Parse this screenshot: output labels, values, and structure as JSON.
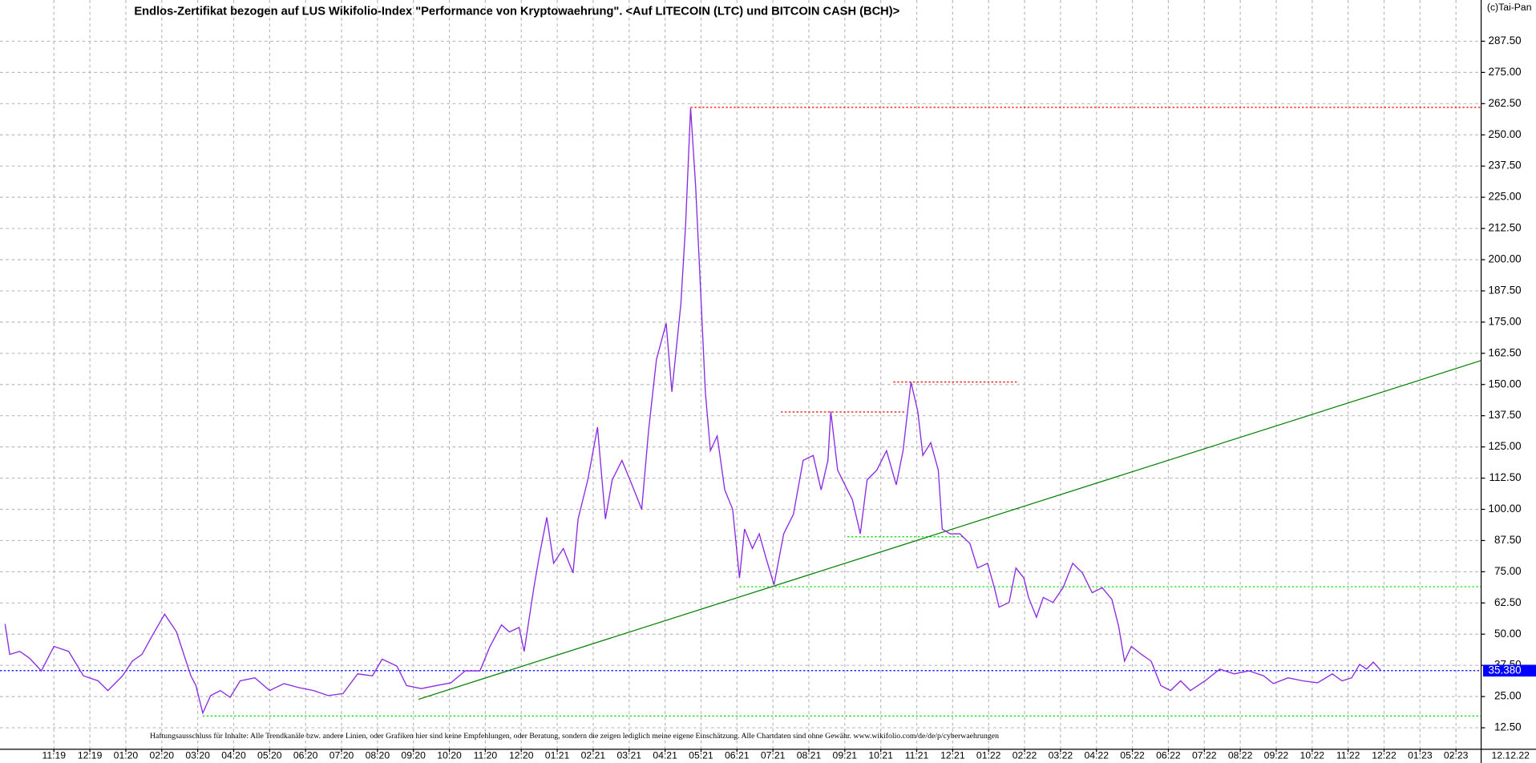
{
  "chart_data": {
    "type": "line",
    "title": "Endlos-Zertifikat bezogen auf LUS Wikifolio-Index \"Performance von Kryptowaehrung\". <Auf LITECOIN (LTC) und BITCOIN CASH (BCH)>",
    "copyright": "(c)Tai-Pan",
    "disclaimer": "Haftungsausschluss für Inhalte: Alle Trendkanäle bzw. andere Linien, oder Grafiken hier sind keine Empfehlungen, oder Beratung, sondern die zeigen lediglich meine eigene Einschätzung. Alle Chartdaten sind ohne Gewähr.  www.wikifolio.com/de/de/p/cyberwaehrungen",
    "date_marker": "-",
    "date_label": "12.12.22",
    "last": {
      "value": 35.38,
      "label": "35.380",
      "color": "#0000ff"
    },
    "grid": true,
    "xlim": [
      -1.5,
      39.7
    ],
    "ylim": [
      3.9,
      304
    ],
    "xticks": [
      {
        "value": 0,
        "label": "11:19"
      },
      {
        "value": 1,
        "label": "12:19"
      },
      {
        "value": 2,
        "label": "01:20"
      },
      {
        "value": 3,
        "label": "02:20"
      },
      {
        "value": 4,
        "label": "03:20"
      },
      {
        "value": 5,
        "label": "04:20"
      },
      {
        "value": 6,
        "label": "05:20"
      },
      {
        "value": 7,
        "label": "06:20"
      },
      {
        "value": 8,
        "label": "07:20"
      },
      {
        "value": 9,
        "label": "08:20"
      },
      {
        "value": 10,
        "label": "09:20"
      },
      {
        "value": 11,
        "label": "10:20"
      },
      {
        "value": 12,
        "label": "11:20"
      },
      {
        "value": 13,
        "label": "12:20"
      },
      {
        "value": 14,
        "label": "01:21"
      },
      {
        "value": 15,
        "label": "02:21"
      },
      {
        "value": 16,
        "label": "03:21"
      },
      {
        "value": 17,
        "label": "04:21"
      },
      {
        "value": 18,
        "label": "05:21"
      },
      {
        "value": 19,
        "label": "06:21"
      },
      {
        "value": 20,
        "label": "07:21"
      },
      {
        "value": 21,
        "label": "08:21"
      },
      {
        "value": 22,
        "label": "09:21"
      },
      {
        "value": 23,
        "label": "10:21"
      },
      {
        "value": 24,
        "label": "11:21"
      },
      {
        "value": 25,
        "label": "12:21"
      },
      {
        "value": 26,
        "label": "01:22"
      },
      {
        "value": 27,
        "label": "02:22"
      },
      {
        "value": 28,
        "label": "03:22"
      },
      {
        "value": 29,
        "label": "04:22"
      },
      {
        "value": 30,
        "label": "05:22"
      },
      {
        "value": 31,
        "label": "06:22"
      },
      {
        "value": 32,
        "label": "07:22"
      },
      {
        "value": 33,
        "label": "08:22"
      },
      {
        "value": 34,
        "label": "09:22"
      },
      {
        "value": 35,
        "label": "10:22"
      },
      {
        "value": 36,
        "label": "11:22"
      },
      {
        "value": 37,
        "label": "12:22"
      },
      {
        "value": 38,
        "label": "01:23"
      },
      {
        "value": 39,
        "label": "02:23"
      }
    ],
    "yticks": [
      {
        "value": 12.5,
        "label": "12.50"
      },
      {
        "value": 25,
        "label": "25.00"
      },
      {
        "value": 37.5,
        "label": "37.50"
      },
      {
        "value": 50,
        "label": "50.00"
      },
      {
        "value": 62.5,
        "label": "62.50"
      },
      {
        "value": 75,
        "label": "75.00"
      },
      {
        "value": 87.5,
        "label": "87.50"
      },
      {
        "value": 100,
        "label": "100.00"
      },
      {
        "value": 112.5,
        "label": "112.50"
      },
      {
        "value": 125,
        "label": "125.00"
      },
      {
        "value": 137.5,
        "label": "137.50"
      },
      {
        "value": 150,
        "label": "150.00"
      },
      {
        "value": 162.5,
        "label": "162.50"
      },
      {
        "value": 175,
        "label": "175.00"
      },
      {
        "value": 187.5,
        "label": "187.50"
      },
      {
        "value": 200,
        "label": "200.00"
      },
      {
        "value": 212.5,
        "label": "212.50"
      },
      {
        "value": 225,
        "label": "225.00"
      },
      {
        "value": 237.5,
        "label": "237.50"
      },
      {
        "value": 250,
        "label": "250.00"
      },
      {
        "value": 262.5,
        "label": "262.50"
      },
      {
        "value": 275,
        "label": "275.00"
      },
      {
        "value": 287.5,
        "label": "287.50"
      }
    ],
    "series": [
      {
        "color": "#8a2be2",
        "x": [
          -1.36,
          -1.23,
          -0.95,
          -0.68,
          -0.35,
          0,
          0.41,
          0.82,
          1.23,
          1.5,
          1.91,
          2.18,
          2.45,
          2.72,
          3.08,
          3.41,
          3.54,
          3.81,
          3.95,
          4.14,
          4.36,
          4.63,
          4.9,
          5.18,
          5.59,
          6,
          6.4,
          6.81,
          7.22,
          7.63,
          8.04,
          8.45,
          8.86,
          9.13,
          9.54,
          9.81,
          10.22,
          10.63,
          11.04,
          11.44,
          11.85,
          12.13,
          12.45,
          12.67,
          12.94,
          13.08,
          13.35,
          13.49,
          13.71,
          13.9,
          14.17,
          14.44,
          14.58,
          14.85,
          15.12,
          15.34,
          15.53,
          15.8,
          16.08,
          16.35,
          16.54,
          16.76,
          17.03,
          17.19,
          17.44,
          17.57,
          17.71,
          17.85,
          17.98,
          18.12,
          18.26,
          18.45,
          18.66,
          18.88,
          19.07,
          19.21,
          19.43,
          19.62,
          19.81,
          20.03,
          20.3,
          20.57,
          20.84,
          21.12,
          21.34,
          21.53,
          21.61,
          21.8,
          22.07,
          22.21,
          22.43,
          22.62,
          22.89,
          23.16,
          23.43,
          23.62,
          23.84,
          24.03,
          24.17,
          24.39,
          24.6,
          24.71,
          24.93,
          25.2,
          25.48,
          25.69,
          25.97,
          26.16,
          26.29,
          26.57,
          26.76,
          26.98,
          27.11,
          27.33,
          27.52,
          27.79,
          28.07,
          28.34,
          28.61,
          28.88,
          29.16,
          29.43,
          29.62,
          29.78,
          29.97,
          30.25,
          30.52,
          30.79,
          31.06,
          31.34,
          31.61,
          32.02,
          32.43,
          32.83,
          33.24,
          33.65,
          33.92,
          34.33,
          34.74,
          35.15,
          35.56,
          35.83,
          36.1,
          36.32,
          36.51,
          36.7,
          36.92
        ],
        "values": [
          54.1,
          41.9,
          43.1,
          40.4,
          35.3,
          45.1,
          43.1,
          33.3,
          31.3,
          27.4,
          33.3,
          39.2,
          41.9,
          49,
          58,
          50.9,
          45.1,
          33.3,
          29.4,
          18.4,
          25.4,
          27.4,
          24.7,
          31.3,
          32.5,
          27.4,
          30.2,
          28.6,
          27.4,
          25.4,
          26.2,
          34.1,
          33.3,
          40,
          37.2,
          29.4,
          28.2,
          29.4,
          30.5,
          35.3,
          35.3,
          45.1,
          53.7,
          50.9,
          52.7,
          43.1,
          68.6,
          80.4,
          96.8,
          78.4,
          84.3,
          74.5,
          96.1,
          111.8,
          132.9,
          96.1,
          111.8,
          119.6,
          109.8,
          100,
          131.4,
          160,
          174.5,
          147.1,
          182.4,
          213.7,
          260.8,
          229.4,
          190.2,
          147.1,
          123.5,
          129.4,
          107.8,
          100,
          72.5,
          92.1,
          84.3,
          90.2,
          80.4,
          69.8,
          90.2,
          98,
          119.6,
          121.6,
          107.8,
          119.6,
          139.2,
          115.7,
          107.8,
          103.9,
          90.2,
          111.8,
          115.7,
          123.5,
          109.8,
          123.5,
          151,
          139.2,
          121.6,
          126.7,
          115.7,
          92.1,
          90.2,
          90.2,
          86.3,
          76.5,
          78.4,
          68.6,
          60.8,
          62.7,
          76.5,
          72.5,
          64.7,
          56.8,
          64.7,
          62.7,
          68.6,
          78.4,
          74.5,
          66.6,
          68.6,
          63.9,
          52.9,
          39.2,
          45.1,
          41.9,
          39.2,
          29.4,
          27.4,
          31.3,
          27.4,
          31.3,
          36,
          34.1,
          35.3,
          33.3,
          30.2,
          32.5,
          31.3,
          30.5,
          34.1,
          31.3,
          32.5,
          37.9,
          36,
          38.8,
          35.3
        ]
      }
    ],
    "lines": [
      {
        "x": [
          17.71,
          39.7
        ],
        "y": [
          261,
          261
        ],
        "color": "#ff0000",
        "dash": true
      },
      {
        "x": [
          20.22,
          23.71
        ],
        "y": [
          139,
          139
        ],
        "color": "#ff0000",
        "dash": true
      },
      {
        "x": [
          23.35,
          26.84
        ],
        "y": [
          151,
          151
        ],
        "color": "#ff0000",
        "dash": true
      },
      {
        "x": [
          4.14,
          39.7
        ],
        "y": [
          17.2,
          17.2
        ],
        "color": "#00dd00",
        "dash": true
      },
      {
        "x": [
          19.07,
          39.7
        ],
        "y": [
          69,
          69
        ],
        "color": "#00dd00",
        "dash": true
      },
      {
        "x": [
          22.07,
          25.34
        ],
        "y": [
          89,
          89
        ],
        "color": "#00dd00",
        "dash": true
      },
      {
        "x": [
          -1.5,
          39.7
        ],
        "y": [
          35.38,
          35.38
        ],
        "color": "#0000ff",
        "dash": true
      },
      {
        "x": [
          10.14,
          39.7
        ],
        "y": [
          23.9,
          159.6
        ],
        "color": "#008000",
        "dash": false
      }
    ]
  }
}
